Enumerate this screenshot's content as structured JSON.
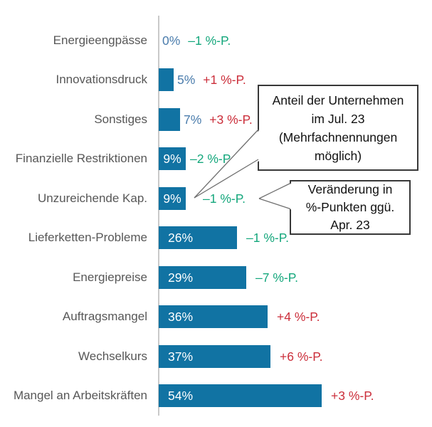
{
  "chart_data": {
    "type": "bar",
    "orientation": "horizontal",
    "title": "",
    "xlabel": "",
    "ylabel": "",
    "xlim": [
      0,
      57
    ],
    "grid": false,
    "categories": [
      "Energieengpässe",
      "Innovationsdruck",
      "Sonstiges",
      "Finanzielle Restriktionen",
      "Unzureichende Kap.",
      "Lieferketten-Probleme",
      "Energiepreise",
      "Auftragsmangel",
      "Wechselkurs",
      "Mangel an Arbeitskräften"
    ],
    "values": [
      0,
      5,
      7,
      9,
      9,
      26,
      29,
      36,
      37,
      54
    ],
    "rows": [
      {
        "label": "Energieengpässe",
        "value": 0,
        "value_label": "0%",
        "delta": "–1 %-P.",
        "direction": "down"
      },
      {
        "label": "Innovationsdruck",
        "value": 5,
        "value_label": "5%",
        "delta": "+1 %-P.",
        "direction": "up"
      },
      {
        "label": "Sonstiges",
        "value": 7,
        "value_label": "7%",
        "delta": "+3 %-P.",
        "direction": "up"
      },
      {
        "label": "Finanzielle Restriktionen",
        "value": 9,
        "value_label": "9%",
        "delta": "–2 %-P.",
        "direction": "down"
      },
      {
        "label": "Unzureichende Kap.",
        "value": 9,
        "value_label": "9%",
        "delta": "–1 %-P.",
        "direction": "down"
      },
      {
        "label": "Lieferketten-Probleme",
        "value": 26,
        "value_label": "26%",
        "delta": "–1 %-P.",
        "direction": "down"
      },
      {
        "label": "Energiepreise",
        "value": 29,
        "value_label": "29%",
        "delta": "–7 %-P.",
        "direction": "down"
      },
      {
        "label": "Auftragsmangel",
        "value": 36,
        "value_label": "36%",
        "delta": "+4 %-P.",
        "direction": "up"
      },
      {
        "label": "Wechselkurs",
        "value": 37,
        "value_label": "37%",
        "delta": "+6 %-P.",
        "direction": "up"
      },
      {
        "label": "Mangel an Arbeitskräften",
        "value": 54,
        "value_label": "54%",
        "delta": "+3 %-P.",
        "direction": "up"
      }
    ],
    "annotations": [
      {
        "lines": [
          "Anteil der Unternehmen",
          "im Jul. 23",
          "(Mehrfachnennungen",
          "möglich)"
        ]
      },
      {
        "lines": [
          "Veränderung in",
          "%-Punkten ggü.",
          "Apr. 23"
        ]
      }
    ],
    "legend_position": "none",
    "colors": {
      "bar": "#1173a3",
      "value_outside": "#4a7cac",
      "delta_up": "#cb2e3a",
      "delta_down": "#14a77c",
      "category_label": "#575757",
      "axis_line": "#c9c9c9",
      "annotation_border": "#383838",
      "annotation_text": "#111111",
      "callout_line": "#6f6f6f"
    }
  }
}
